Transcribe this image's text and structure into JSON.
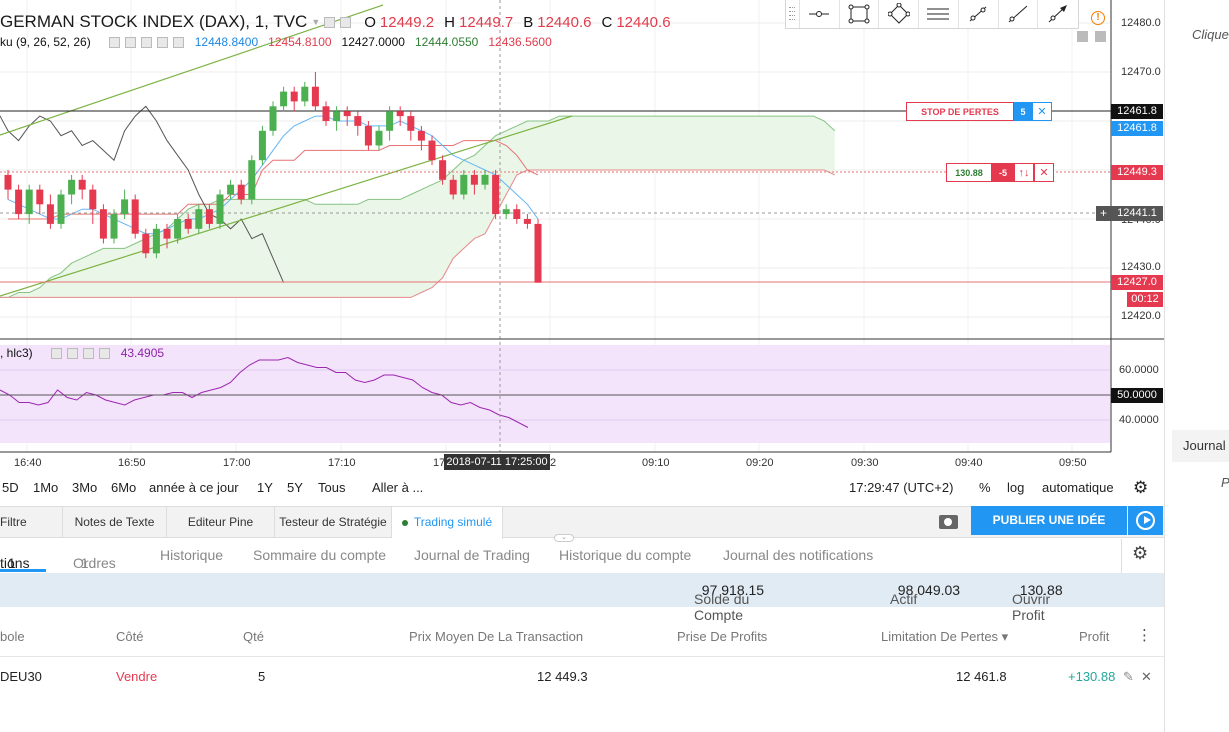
{
  "legend": {
    "title": "GERMAN STOCK INDEX (DAX), 1, TVC",
    "o_label": "O",
    "o_value": "12449.2",
    "h_label": "H",
    "h_value": "12449.7",
    "b_label": "B",
    "b_value": "12440.6",
    "c_label": "C",
    "c_value": "12440.6"
  },
  "ichimoku": {
    "label": "ku (9, 26, 52, 26)",
    "v1": "12448.8400",
    "v2": "12454.8100",
    "v3": "12427.0000",
    "v4": "12444.0550",
    "v5": "12436.5600"
  },
  "oscillator": {
    "label": ", hlc3)",
    "value": "43.4905"
  },
  "price_axis": {
    "ticks": [
      "12480.0",
      "12470.0",
      "12430.0",
      "12420.0"
    ],
    "tick_partial": "12440.0",
    "labels": {
      "stop": "12461.8",
      "stop_blue": "12461.8",
      "entry": "12449.3",
      "current": "12441.1",
      "low": "12427.0",
      "countdown": "00:12"
    },
    "plus": "+"
  },
  "osc_axis": {
    "ticks": [
      "60.0000",
      "40.0000"
    ],
    "mid": "50.0000"
  },
  "time_axis": {
    "ticks": [
      "16:40",
      "16:50",
      "17:00",
      "17:10",
      "09:10",
      "09:20",
      "09:30",
      "09:40",
      "09:50"
    ],
    "cursor_label": "2018-07-11 17:25:00",
    "left_partial": "17",
    "right_partial": "2"
  },
  "orders": {
    "stop": {
      "label": "STOP DE PERTES",
      "qty": "5",
      "close": "✕"
    },
    "position": {
      "profit": "130.88",
      "qty": "-5",
      "reverse": "↑↓",
      "close": "✕"
    }
  },
  "alert_icon": "!",
  "periods": [
    "5D",
    "1Mo",
    "3Mo",
    "6Mo",
    "année à ce jour",
    "1Y",
    "5Y",
    "Tous"
  ],
  "goto": "Aller à ...",
  "clock": "17:29:47 (UTC+2)",
  "scale_options": [
    "%",
    "log",
    "automatique"
  ],
  "bottom_tabs": [
    "Filtre",
    "Notes de Texte",
    "Editeur Pine",
    "Testeur de Stratégie",
    "Trading simulé"
  ],
  "publish": "PUBLIER UNE IDÉE",
  "trading": {
    "tabs": {
      "positions": "tions",
      "positions_count": "1",
      "orders": "Ordres",
      "orders_count": "1",
      "history": "Historique",
      "summary": "Sommaire du compte",
      "journal": "Journal de Trading",
      "account_history": "Historique du compte",
      "notifications": "Journal des notifications"
    },
    "account": {
      "balance_label": "Solde du Compte",
      "balance": "97 918.15",
      "equity_label": "Actif",
      "equity": "98 049.03",
      "open_profit_label": "Ouvrir Profit",
      "open_profit": "130.88"
    },
    "columns": {
      "symbol": "bole",
      "side": "Côté",
      "qty": "Qté",
      "avg_price": "Prix Moyen De La Transaction",
      "take_profit": "Prise De Profits",
      "stop_loss": "Limitation De Pertes ▾",
      "profit": "Profit",
      "menu": "⋮"
    },
    "row": {
      "symbol": "DEU30",
      "side": "Vendre",
      "qty": "5",
      "avg_price": "12 449.3",
      "take_profit": "",
      "stop_loss": "12 461.8",
      "profit": "+130.88",
      "edit": "✎",
      "close": "✕"
    }
  },
  "right_strip": {
    "top": "Clique",
    "mid": "Journal",
    "bottom": "P"
  },
  "colors": {
    "up": "#4caf50",
    "down": "#e53950",
    "accent": "#2196f3",
    "osc_bg": "#f3e3fb"
  },
  "chart_data": {
    "type": "candlestick",
    "candles": [
      [
        12449,
        12446,
        12450,
        12444
      ],
      [
        12446,
        12441,
        12447,
        12440
      ],
      [
        12441,
        12446,
        12447,
        12439
      ],
      [
        12446,
        12443,
        12447,
        12441
      ],
      [
        12443,
        12439,
        12445,
        12438
      ],
      [
        12439,
        12445,
        12446,
        12438
      ],
      [
        12445,
        12448,
        12449,
        12443
      ],
      [
        12448,
        12446,
        12449,
        12444
      ],
      [
        12446,
        12442,
        12447,
        12439
      ],
      [
        12442,
        12436,
        12443,
        12435
      ],
      [
        12436,
        12441,
        12442,
        12435
      ],
      [
        12441,
        12444,
        12446,
        12440
      ],
      [
        12444,
        12437,
        12445,
        12436
      ],
      [
        12437,
        12433,
        12438,
        12432
      ],
      [
        12433,
        12438,
        12439,
        12432
      ],
      [
        12438,
        12436,
        12439,
        12434
      ],
      [
        12436,
        12440,
        12441,
        12435
      ],
      [
        12440,
        12438,
        12441,
        12437
      ],
      [
        12438,
        12442,
        12443,
        12437
      ],
      [
        12442,
        12439,
        12443,
        12438
      ],
      [
        12439,
        12445,
        12446,
        12438
      ],
      [
        12445,
        12447,
        12448,
        12444
      ],
      [
        12447,
        12444,
        12448,
        12443
      ],
      [
        12444,
        12452,
        12453,
        12443
      ],
      [
        12452,
        12458,
        12459,
        12451
      ],
      [
        12458,
        12463,
        12464,
        12457
      ],
      [
        12463,
        12466,
        12467,
        12462
      ],
      [
        12466,
        12464,
        12467,
        12462
      ],
      [
        12464,
        12467,
        12468,
        12463
      ],
      [
        12467,
        12463,
        12470,
        12462
      ],
      [
        12463,
        12460,
        12464,
        12459
      ],
      [
        12460,
        12462,
        12463,
        12458
      ],
      [
        12462,
        12461,
        12463,
        12459
      ],
      [
        12461,
        12459,
        12462,
        12457
      ],
      [
        12459,
        12455,
        12460,
        12454
      ],
      [
        12455,
        12458,
        12459,
        12454
      ],
      [
        12458,
        12462,
        12463,
        12456
      ],
      [
        12462,
        12461,
        12463,
        12459
      ],
      [
        12461,
        12458,
        12462,
        12456
      ],
      [
        12458,
        12456,
        12459,
        12454
      ],
      [
        12456,
        12452,
        12457,
        12451
      ],
      [
        12452,
        12448,
        12453,
        12447
      ],
      [
        12448,
        12445,
        12449,
        12444
      ],
      [
        12445,
        12449,
        12450,
        12444
      ],
      [
        12449,
        12447,
        12450,
        12445
      ],
      [
        12447,
        12449,
        12450,
        12446
      ],
      [
        12449,
        12441,
        12450,
        12440
      ],
      [
        12441,
        12442,
        12443,
        12440
      ],
      [
        12442,
        12440,
        12443,
        12439
      ],
      [
        12440,
        12439,
        12441,
        12438
      ],
      [
        12439,
        12427,
        12440,
        12427
      ]
    ],
    "tenkan": [
      12444,
      12443,
      12442,
      12441,
      12440,
      12440,
      12441,
      12442,
      12442,
      12441,
      12440,
      12439,
      12438,
      12437,
      12437,
      12438,
      12439,
      12440,
      12440,
      12441,
      12442,
      12444,
      12446,
      12448,
      12451,
      12454,
      12457,
      12459,
      12460,
      12461,
      12461,
      12460,
      12460,
      12460,
      12459,
      12459,
      12459,
      12460,
      12459,
      12458,
      12457,
      12455,
      12453,
      12452,
      12451,
      12450,
      12449,
      12447,
      12445,
      12443,
      12440
    ],
    "kijun": [
      12440,
      12440,
      12440,
      12440,
      12440,
      12441,
      12441,
      12441,
      12441,
      12441,
      12441,
      12441,
      12441,
      12441,
      12441,
      12441,
      12441,
      12443,
      12443,
      12443,
      12443,
      12445,
      12445,
      12445,
      12450,
      12452,
      12452,
      12452,
      12454,
      12454,
      12454,
      12454,
      12454,
      12454,
      12454,
      12454,
      12455,
      12455,
      12455,
      12455,
      12455,
      12455,
      12455,
      12456,
      12456,
      12456,
      12456,
      12455,
      12453,
      12450,
      12449
    ],
    "chikou": [
      12462,
      12458,
      12456,
      12459,
      12461,
      12460,
      12457,
      12458,
      12455,
      12456,
      12454,
      12452,
      12458,
      12461,
      12463,
      12460,
      12456,
      12453,
      12450,
      12445,
      12441,
      12440,
      12438,
      12440,
      12436,
      12437,
      12432,
      12427
    ],
    "span_a": [
      12424,
      12424,
      12424,
      12425,
      12425,
      12426,
      12428,
      12429,
      12431,
      12432,
      12433,
      12434,
      12434,
      12434,
      12435,
      12436,
      12437,
      12438,
      12440,
      12442,
      12443,
      12443,
      12444,
      12444,
      12444,
      12444,
      12444,
      12444,
      12444,
      12444,
      12444,
      12443,
      12443,
      12443,
      12443,
      12443,
      12444,
      12444,
      12444,
      12444,
      12445,
      12446,
      12447,
      12448,
      12450,
      12452,
      12453,
      12455,
      12457,
      12458,
      12459,
      12460,
      12460,
      12460,
      12461,
      12461,
      12461,
      12461,
      12461,
      12461,
      12461,
      12461,
      12461,
      12461,
      12461,
      12461,
      12461,
      12461,
      12461,
      12461,
      12461,
      12461,
      12461,
      12461,
      12461,
      12461,
      12461,
      12461,
      12461,
      12460,
      12458
    ],
    "span_b": [
      12424,
      12424,
      12424,
      12424,
      12424,
      12424,
      12424,
      12424,
      12424,
      12424,
      12424,
      12424,
      12424,
      12424,
      12424,
      12424,
      12424,
      12424,
      12424,
      12424,
      12424,
      12424,
      12424,
      12424,
      12424,
      12424,
      12424,
      12424,
      12424,
      12424,
      12424,
      12424,
      12424,
      12424,
      12424,
      12424,
      12424,
      12424,
      12424,
      12424,
      12424,
      12425,
      12426,
      12428,
      12432,
      12434,
      12436,
      12437,
      12441,
      12445,
      12449,
      12450,
      12450,
      12450,
      12450,
      12450,
      12450,
      12450,
      12450,
      12450,
      12450,
      12450,
      12450,
      12450,
      12450,
      12450,
      12450,
      12450,
      12450,
      12450,
      12450,
      12450,
      12450,
      12450,
      12450,
      12450,
      12450,
      12450,
      12450,
      12450,
      12449
    ],
    "oscillator": [
      52,
      50,
      47,
      47,
      46,
      47,
      52,
      49,
      48,
      51,
      50,
      48,
      47,
      46,
      48,
      49,
      50,
      50,
      51,
      51,
      49,
      51,
      52,
      53,
      55,
      59,
      62,
      64,
      64,
      64,
      65,
      63,
      62,
      61,
      61,
      59,
      59,
      56,
      55,
      56,
      58,
      58,
      57,
      56,
      53,
      51,
      50,
      47,
      46,
      47,
      45,
      44,
      42,
      41,
      39,
      37
    ],
    "ylim": [
      12418,
      12483
    ],
    "osc_ylim": [
      35,
      70
    ]
  }
}
